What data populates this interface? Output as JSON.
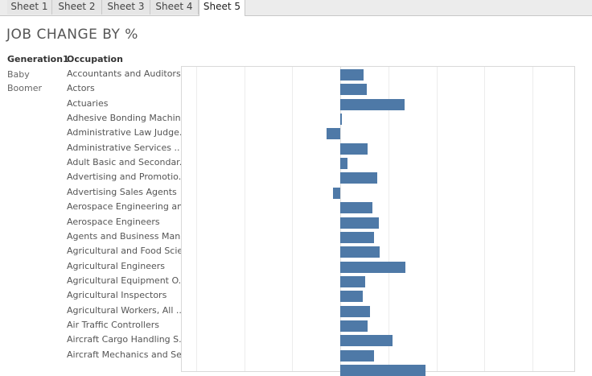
{
  "tabs": [
    {
      "label": "Sheet 1",
      "active": false
    },
    {
      "label": "Sheet 2",
      "active": false
    },
    {
      "label": "Sheet 3",
      "active": false
    },
    {
      "label": "Sheet 4",
      "active": false
    },
    {
      "label": "Sheet 5",
      "active": true
    }
  ],
  "title": "JOB CHANGE BY %",
  "headers": {
    "generation": "Generation1",
    "occupation": "Occupation"
  },
  "generation_value": "Baby Boomer",
  "colors": {
    "bar": "#4e79a7"
  },
  "chart_data": {
    "type": "bar",
    "orientation": "horizontal",
    "grid": true,
    "categories": [
      "Accountants and Auditors",
      "Actors",
      "Actuaries",
      "Adhesive Bonding Machin..",
      "Administrative Law Judge..",
      "Administrative Services ..",
      "Adult Basic and Secondar..",
      "Advertising and Promotio..",
      "Advertising Sales Agents",
      "Aerospace Engineering an..",
      "Aerospace Engineers",
      "Agents and Business Man..",
      "Agricultural and Food Scie..",
      "Agricultural Engineers",
      "Agricultural Equipment O..",
      "Agricultural Inspectors",
      "Agricultural Workers, All ..",
      "Air Traffic Controllers",
      "Aircraft Cargo Handling S..",
      "Aircraft Mechanics and Se..",
      ""
    ],
    "values": [
      0.48,
      0.55,
      1.33,
      0.02,
      -0.28,
      0.57,
      0.15,
      0.77,
      -0.15,
      0.67,
      0.8,
      0.7,
      0.82,
      1.35,
      0.52,
      0.47,
      0.62,
      0.57,
      1.08,
      0.7,
      1.77
    ],
    "xlim": [
      -3.3,
      4.9
    ],
    "x_gridlines": [
      -3,
      -2,
      -1,
      0,
      1,
      2,
      3,
      4
    ]
  }
}
